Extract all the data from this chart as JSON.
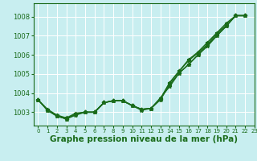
{
  "title": "Graphe pression niveau de la mer (hPa)",
  "background_color": "#c8eef0",
  "grid_color": "#ffffff",
  "line_color": "#1a6b1a",
  "xlim": [
    -0.5,
    23
  ],
  "ylim": [
    1002.3,
    1008.7
  ],
  "yticks": [
    1003,
    1004,
    1005,
    1006,
    1007,
    1008
  ],
  "xticks": [
    0,
    1,
    2,
    3,
    4,
    5,
    6,
    7,
    8,
    9,
    10,
    11,
    12,
    13,
    14,
    15,
    16,
    17,
    18,
    19,
    20,
    21,
    22,
    23
  ],
  "series": [
    {
      "x": [
        0,
        1,
        2,
        3,
        4,
        5,
        6,
        7,
        8,
        9,
        10,
        11,
        12,
        13,
        14,
        15,
        16,
        17,
        18,
        19,
        20,
        21,
        22
      ],
      "y": [
        1003.65,
        1003.1,
        1002.8,
        1002.65,
        1002.85,
        1003.0,
        1003.0,
        1003.5,
        1003.6,
        1003.6,
        1003.35,
        1003.1,
        1003.2,
        1003.65,
        1004.45,
        1005.05,
        1005.5,
        1006.0,
        1006.45,
        1007.0,
        1007.5,
        1008.05,
        1008.05
      ]
    },
    {
      "x": [
        0,
        1,
        2,
        3,
        4,
        5,
        6,
        7,
        8,
        9,
        10,
        11,
        12,
        13,
        14,
        15,
        16,
        17,
        18,
        19,
        20,
        21,
        22
      ],
      "y": [
        1003.65,
        1003.1,
        1002.8,
        1002.65,
        1002.9,
        1003.0,
        1003.0,
        1003.5,
        1003.6,
        1003.6,
        1003.35,
        1003.15,
        1003.2,
        1003.7,
        1004.55,
        1005.15,
        1005.7,
        1006.1,
        1006.55,
        1007.1,
        1007.55,
        1008.05,
        1008.05
      ]
    },
    {
      "x": [
        0,
        1,
        2,
        3,
        4,
        5,
        6,
        7,
        8,
        9,
        10,
        11,
        12,
        13,
        14,
        15,
        16,
        17,
        18,
        19,
        20,
        21,
        22
      ],
      "y": [
        1003.65,
        1003.15,
        1002.85,
        1002.7,
        1002.95,
        1003.0,
        1003.0,
        1003.5,
        1003.6,
        1003.6,
        1003.35,
        1003.15,
        1003.2,
        1003.75,
        1004.35,
        1005.05,
        1005.5,
        1006.0,
        1006.5,
        1007.0,
        1007.5,
        1008.05,
        1008.05
      ]
    },
    {
      "x": [
        0,
        1,
        2,
        3,
        4,
        5,
        6,
        7,
        8,
        9,
        10,
        11,
        12,
        13,
        14,
        15,
        16,
        17,
        18,
        19,
        20,
        21,
        22
      ],
      "y": [
        1003.65,
        1003.1,
        1002.8,
        1002.65,
        1002.9,
        1003.0,
        1003.0,
        1003.5,
        1003.6,
        1003.6,
        1003.35,
        1003.15,
        1003.2,
        1003.7,
        1004.55,
        1005.15,
        1005.75,
        1006.15,
        1006.65,
        1007.15,
        1007.65,
        1008.05,
        1008.05
      ]
    }
  ],
  "line_width": 1.0,
  "marker_style": "*",
  "marker_size": 3.5,
  "tick_fontsize": 5.5,
  "xlabel_fontsize": 7.5
}
